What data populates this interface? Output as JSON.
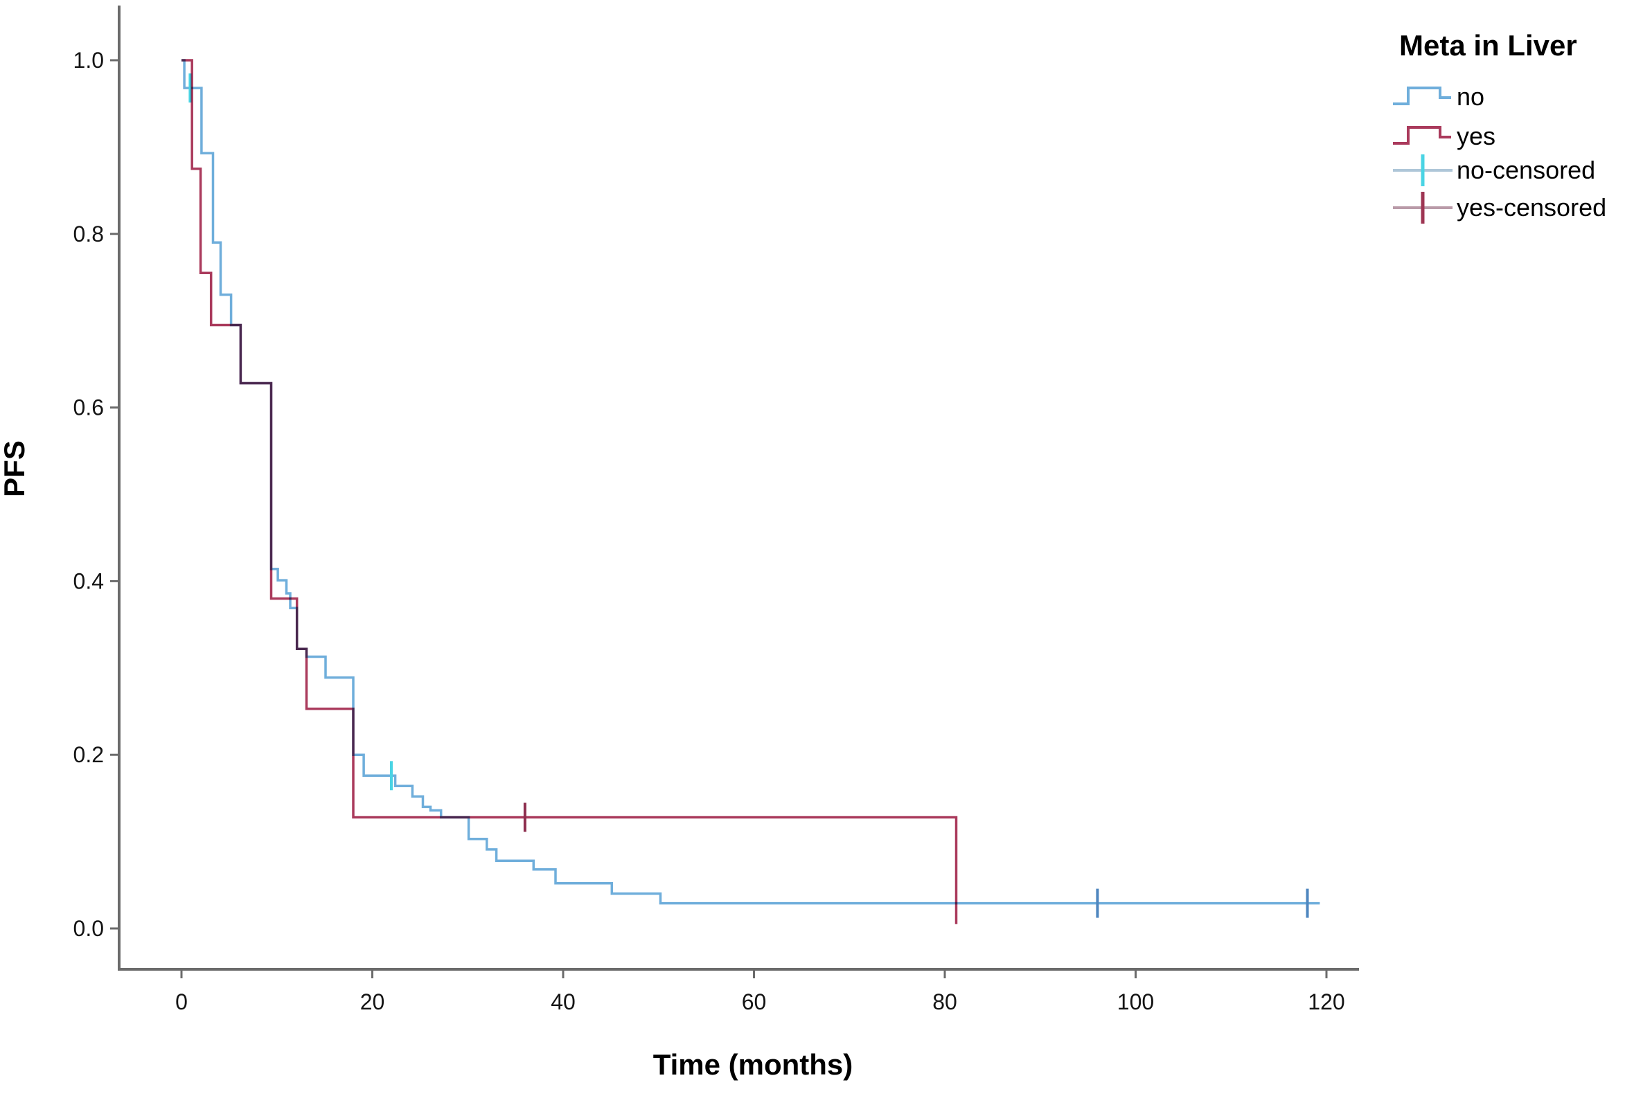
{
  "figure": {
    "background": "#ffffff"
  },
  "legend": {
    "title": "Meta in Liver",
    "entries": [
      {
        "label": "no",
        "type": "line",
        "color": "#6FAEDB"
      },
      {
        "label": "yes",
        "type": "line",
        "color": "#AA3A5C"
      },
      {
        "label": "no-censored",
        "type": "censor",
        "color": "#4AD4E4",
        "line_color": "#AEC6D8"
      },
      {
        "label": "yes-censored",
        "type": "censor",
        "color": "#9E3553",
        "line_color": "#B99AA8"
      }
    ]
  },
  "chart_data": {
    "type": "line",
    "subtype": "kaplan-meier-step",
    "title": "",
    "xlabel": "Time (months)",
    "ylabel": "PFS",
    "xlim": [
      -6.5,
      123.5
    ],
    "ylim": [
      -0.047,
      1.063
    ],
    "grid": false,
    "legend_position": "top-right",
    "x_ticks": [
      0,
      20,
      40,
      60,
      80,
      100,
      120
    ],
    "x_tick_labels": [
      "0",
      "20",
      "40",
      "60",
      "80",
      "100",
      "120"
    ],
    "y_ticks": [
      0.0,
      0.2,
      0.4,
      0.6,
      0.8,
      1.0
    ],
    "y_tick_labels": [
      "0.0",
      "0.2",
      "0.4",
      "0.6",
      "0.8",
      "1.0"
    ],
    "series": [
      {
        "name": "no",
        "color": "#6FAEDB",
        "censor_color": "#4AD4E4",
        "steps": [
          [
            0,
            1.0
          ],
          [
            0.3,
            0.968
          ],
          [
            2.1,
            0.893
          ],
          [
            3.3,
            0.79
          ],
          [
            4.1,
            0.73
          ],
          [
            5.2,
            0.695
          ],
          [
            6.2,
            0.628
          ],
          [
            9.4,
            0.414
          ],
          [
            10.1,
            0.401
          ],
          [
            11.0,
            0.386
          ],
          [
            11.4,
            0.369
          ],
          [
            12.1,
            0.322
          ],
          [
            13.1,
            0.313
          ],
          [
            15.1,
            0.289
          ],
          [
            18.0,
            0.2
          ],
          [
            19.1,
            0.176
          ],
          [
            22.4,
            0.164
          ],
          [
            24.2,
            0.152
          ],
          [
            25.3,
            0.14
          ],
          [
            26.1,
            0.136
          ],
          [
            27.2,
            0.128
          ],
          [
            30.1,
            0.103
          ],
          [
            32.0,
            0.091
          ],
          [
            33.0,
            0.078
          ],
          [
            36.9,
            0.068
          ],
          [
            39.2,
            0.052
          ],
          [
            45.1,
            0.04
          ],
          [
            50.2,
            0.029
          ]
        ],
        "end_t": 119.3,
        "censors": [
          {
            "t": 0.9,
            "v": 0.968,
            "color": "#4AD4E4"
          },
          {
            "t": 22.0,
            "v": 0.176,
            "color": "#4AD4E4"
          },
          {
            "t": 96.0,
            "v": 0.029,
            "color": "#4E86BF"
          },
          {
            "t": 118.0,
            "v": 0.029,
            "color": "#4E86BF"
          }
        ]
      },
      {
        "name": "yes",
        "color": "#AA3A5C",
        "censor_color": "#8E2F4F",
        "steps": [
          [
            0,
            1.0
          ],
          [
            1.1,
            0.875
          ],
          [
            2.0,
            0.755
          ],
          [
            3.1,
            0.695
          ],
          [
            6.2,
            0.628
          ],
          [
            9.4,
            0.38
          ],
          [
            12.1,
            0.322
          ],
          [
            13.1,
            0.253
          ],
          [
            18.0,
            0.128
          ],
          [
            81.2,
            0.005
          ]
        ],
        "end_t": 81.2,
        "censors": [
          {
            "t": 36.0,
            "v": 0.128,
            "color": "#8E2F4F"
          }
        ]
      }
    ]
  }
}
